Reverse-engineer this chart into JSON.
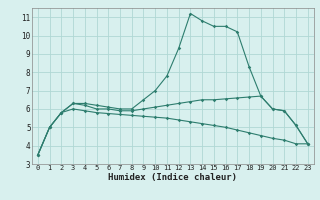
{
  "xlabel": "Humidex (Indice chaleur)",
  "x_values": [
    0,
    1,
    2,
    3,
    4,
    5,
    6,
    7,
    8,
    9,
    10,
    11,
    12,
    13,
    14,
    15,
    16,
    17,
    18,
    19,
    20,
    21,
    22,
    23
  ],
  "series": [
    [
      3.5,
      5.0,
      5.8,
      6.3,
      6.3,
      6.2,
      6.1,
      6.0,
      6.0,
      6.5,
      7.0,
      7.8,
      9.3,
      11.2,
      10.8,
      10.5,
      10.5,
      10.2,
      8.3,
      6.7,
      6.0,
      5.9,
      5.1,
      4.1
    ],
    [
      3.5,
      5.0,
      5.8,
      6.3,
      6.2,
      6.0,
      6.0,
      5.9,
      5.9,
      6.0,
      6.1,
      6.2,
      6.3,
      6.4,
      6.5,
      6.5,
      6.55,
      6.6,
      6.65,
      6.7,
      6.0,
      5.9,
      5.1,
      4.1
    ],
    [
      3.5,
      5.0,
      5.8,
      6.0,
      5.9,
      5.8,
      5.75,
      5.7,
      5.65,
      5.6,
      5.55,
      5.5,
      5.4,
      5.3,
      5.2,
      5.1,
      5.0,
      4.85,
      4.7,
      4.55,
      4.4,
      4.3,
      4.1,
      4.1
    ]
  ],
  "line_color": "#2d7d6e",
  "bg_color": "#d8f0ee",
  "grid_color": "#b0d8d4",
  "ylim": [
    3,
    11.5
  ],
  "xlim": [
    -0.5,
    23.5
  ],
  "yticks": [
    3,
    4,
    5,
    6,
    7,
    8,
    9,
    10,
    11
  ],
  "xticks": [
    0,
    1,
    2,
    3,
    4,
    5,
    6,
    7,
    8,
    9,
    10,
    11,
    12,
    13,
    14,
    15,
    16,
    17,
    18,
    19,
    20,
    21,
    22,
    23
  ]
}
